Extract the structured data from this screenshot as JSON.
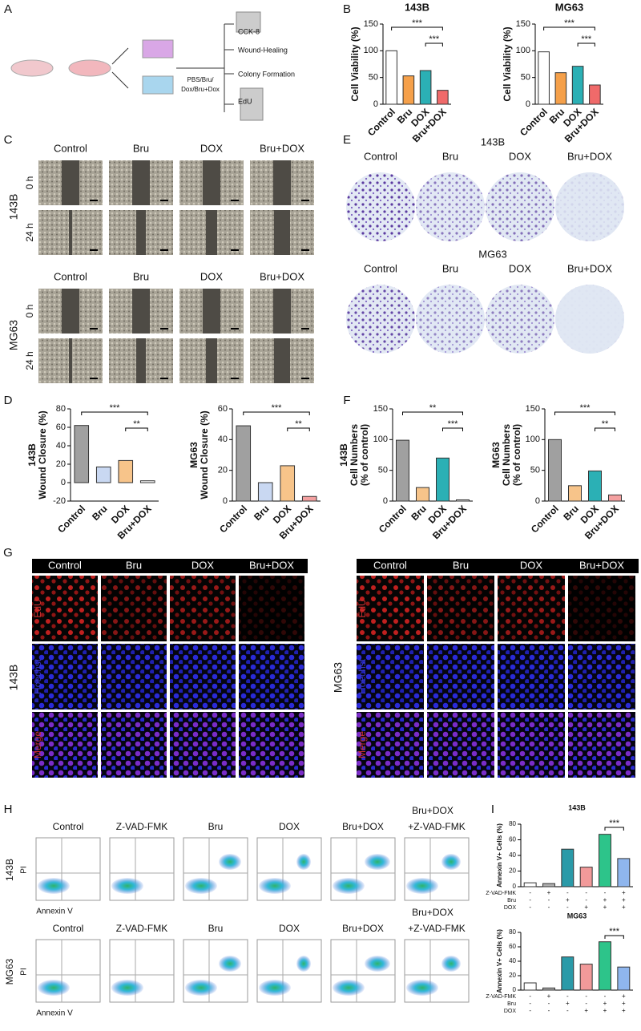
{
  "panel_labels": [
    "A",
    "B",
    "C",
    "D",
    "E",
    "F",
    "G",
    "H",
    "I"
  ],
  "schematic": {
    "steps": [
      "CCK-8",
      "Wound-Healing",
      "Colony Formation",
      "EdU"
    ],
    "treatment": [
      "PBS/Bru/",
      "Dox/Bru+Dox"
    ]
  },
  "groups": [
    "Control",
    "Bru",
    "DOX",
    "Bru+DOX"
  ],
  "wound": {
    "cell_lines": [
      "143B",
      "MG63"
    ],
    "times": [
      "0 h",
      "24 h"
    ]
  },
  "colony": {
    "cell_lines": [
      "143B",
      "MG63"
    ]
  },
  "edu": {
    "cell_lines": [
      "143B",
      "MG63"
    ],
    "channels": [
      "EdU",
      "Hoechst",
      "Merge"
    ]
  },
  "flow": {
    "cell_lines": [
      "143B",
      "MG63"
    ],
    "groups": [
      "Control",
      "Z-VAD-FMK",
      "Bru",
      "DOX",
      "Bru+DOX",
      "+Z-VAD-FMK"
    ],
    "group_top": "Bru+DOX",
    "x_axis": "Annexin V",
    "y_axis": "PI"
  },
  "chart_data": [
    {
      "type": "bar",
      "title": "143B",
      "y_label": [
        "Cell Viability (%)"
      ],
      "categories": [
        "Control",
        "Bru",
        "DOX",
        "Bru+DOX"
      ],
      "values": [
        100,
        53,
        63,
        26
      ],
      "colors": [
        "#ffffff",
        "#f5a04a",
        "#2bb0b5",
        "#f06a6a"
      ],
      "ylim": [
        0,
        150
      ],
      "yticks": [
        0,
        50,
        100,
        150
      ],
      "annotations": [
        "***",
        "***"
      ]
    },
    {
      "type": "bar",
      "title": "MG63",
      "y_label": [
        "Cell Viability (%)"
      ],
      "categories": [
        "Control",
        "Bru",
        "DOX",
        "Bru+DOX"
      ],
      "values": [
        98,
        59,
        71,
        36
      ],
      "colors": [
        "#ffffff",
        "#f5a04a",
        "#2bb0b5",
        "#f06a6a"
      ],
      "ylim": [
        0,
        150
      ],
      "yticks": [
        0,
        50,
        100,
        150
      ],
      "annotations": [
        "***",
        "***"
      ]
    },
    {
      "type": "bar",
      "y_label": [
        "143B",
        "Wound Closure (%)"
      ],
      "categories": [
        "Control",
        "Bru",
        "DOX",
        "Bru+DOX"
      ],
      "values": [
        62,
        17,
        24,
        2
      ],
      "colors": [
        "#a0a0a0",
        "#c9d8f2",
        "#f7c48a",
        "#ffffff"
      ],
      "ylim": [
        -20,
        80
      ],
      "yticks": [
        -20,
        0,
        20,
        40,
        60,
        80
      ],
      "annotations": [
        "***",
        "**"
      ]
    },
    {
      "type": "bar",
      "y_label": [
        "MG63",
        "Wound Closure (%)"
      ],
      "categories": [
        "Control",
        "Bru",
        "DOX",
        "Bru+DOX"
      ],
      "values": [
        49,
        12,
        23,
        3
      ],
      "colors": [
        "#a0a0a0",
        "#c9d8f2",
        "#f7c48a",
        "#f4a0a0"
      ],
      "ylim": [
        0,
        60
      ],
      "yticks": [
        0,
        20,
        40,
        60
      ],
      "annotations": [
        "***",
        "**"
      ]
    },
    {
      "type": "bar",
      "y_label": [
        "143B",
        "Cell Numbers",
        "(% of control)"
      ],
      "categories": [
        "Control",
        "Bru",
        "DOX",
        "Bru+DOX"
      ],
      "values": [
        99,
        22,
        70,
        2
      ],
      "colors": [
        "#a0a0a0",
        "#f7c48a",
        "#2bb0b5",
        "#ffffff"
      ],
      "ylim": [
        0,
        150
      ],
      "yticks": [
        0,
        50,
        100,
        150
      ],
      "annotations": [
        "**",
        "***"
      ]
    },
    {
      "type": "bar",
      "y_label": [
        "MG63",
        "Cell Numbers",
        "(% of control)"
      ],
      "categories": [
        "Control",
        "Bru",
        "DOX",
        "Bru+DOX"
      ],
      "values": [
        100,
        25,
        49,
        10
      ],
      "colors": [
        "#a0a0a0",
        "#f7c48a",
        "#2bb0b5",
        "#f4a0a0"
      ],
      "ylim": [
        0,
        150
      ],
      "yticks": [
        0,
        50,
        100,
        150
      ],
      "annotations": [
        "***",
        "**"
      ]
    },
    {
      "type": "bar",
      "title": "143B",
      "y_label": [
        "Annexin V+ Cells (%)"
      ],
      "values": [
        5,
        4,
        48,
        25,
        67,
        36
      ],
      "colors": [
        "#ffffff",
        "#b0b0b0",
        "#2a9aa8",
        "#f29a9a",
        "#2dc48a",
        "#8fb6ee"
      ],
      "ylim": [
        0,
        80
      ],
      "yticks": [
        0,
        20,
        40,
        60,
        80
      ],
      "annotations": [
        "***"
      ],
      "conditions": [
        {
          "name": "Z-VAD-FMK",
          "values": [
            "-",
            "+",
            "-",
            "-",
            "-",
            "+"
          ]
        },
        {
          "name": "Bru",
          "values": [
            "-",
            "-",
            "+",
            "-",
            "+",
            "+"
          ]
        },
        {
          "name": "DOX",
          "values": [
            "-",
            "-",
            "-",
            "+",
            "+",
            "+"
          ]
        }
      ]
    },
    {
      "type": "bar",
      "title": "MG63",
      "y_label": [
        "Annexin V+ Cells (%)"
      ],
      "values": [
        10,
        3,
        46,
        36,
        67,
        32
      ],
      "colors": [
        "#ffffff",
        "#b0b0b0",
        "#2a9aa8",
        "#f29a9a",
        "#2dc48a",
        "#8fb6ee"
      ],
      "ylim": [
        0,
        80
      ],
      "yticks": [
        0,
        20,
        40,
        60,
        80
      ],
      "annotations": [
        "***"
      ],
      "conditions": [
        {
          "name": "Z-VAD-FMK",
          "values": [
            "-",
            "+",
            "-",
            "-",
            "-",
            "+"
          ]
        },
        {
          "name": "Bru",
          "values": [
            "-",
            "-",
            "+",
            "-",
            "+",
            "+"
          ]
        },
        {
          "name": "DOX",
          "values": [
            "-",
            "-",
            "-",
            "+",
            "+",
            "+"
          ]
        }
      ]
    }
  ]
}
